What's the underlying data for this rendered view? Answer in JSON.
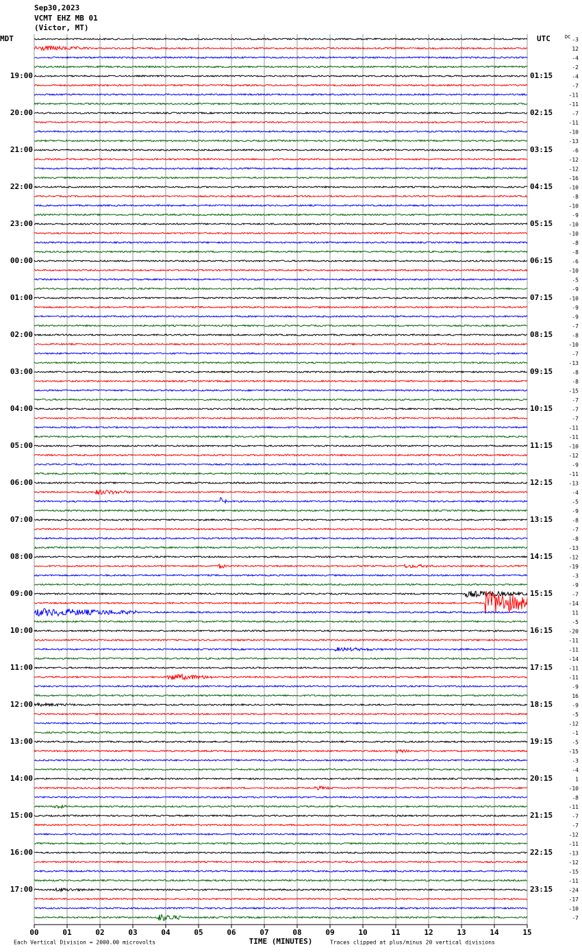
{
  "header": {
    "date": "Sep30,2023",
    "station": "VCMT EHZ MB 01",
    "location": "(Victor, MT)"
  },
  "zones": {
    "left": "MDT",
    "right": "UTC",
    "dc": "DC"
  },
  "hours": [
    {
      "mdt": "19:00",
      "utc": "01:15"
    },
    {
      "mdt": "20:00",
      "utc": "02:15"
    },
    {
      "mdt": "21:00",
      "utc": "03:15"
    },
    {
      "mdt": "22:00",
      "utc": "04:15"
    },
    {
      "mdt": "23:00",
      "utc": "05:15"
    },
    {
      "mdt": "00:00",
      "utc": "06:15"
    },
    {
      "mdt": "01:00",
      "utc": "07:15"
    },
    {
      "mdt": "02:00",
      "utc": "08:15"
    },
    {
      "mdt": "03:00",
      "utc": "09:15"
    },
    {
      "mdt": "04:00",
      "utc": "10:15"
    },
    {
      "mdt": "05:00",
      "utc": "11:15"
    },
    {
      "mdt": "06:00",
      "utc": "12:15"
    },
    {
      "mdt": "07:00",
      "utc": "13:15"
    },
    {
      "mdt": "08:00",
      "utc": "14:15"
    },
    {
      "mdt": "09:00",
      "utc": "15:15"
    },
    {
      "mdt": "10:00",
      "utc": "16:15"
    },
    {
      "mdt": "11:00",
      "utc": "17:15"
    },
    {
      "mdt": "12:00",
      "utc": "18:15"
    },
    {
      "mdt": "13:00",
      "utc": "19:15"
    },
    {
      "mdt": "14:00",
      "utc": "20:15"
    },
    {
      "mdt": "15:00",
      "utc": "21:15"
    },
    {
      "mdt": "16:00",
      "utc": "22:15"
    },
    {
      "mdt": "17:00",
      "utc": "23:15"
    }
  ],
  "dc_offsets": [
    -3,
    12,
    -4,
    -2,
    -4,
    -7,
    -11,
    -11,
    -7,
    -11,
    -10,
    -13,
    -6,
    -12,
    -12,
    -16,
    -10,
    -8,
    -10,
    -9,
    -10,
    -10,
    -8,
    -8,
    -6,
    -10,
    -5,
    -9,
    -10,
    -9,
    -9,
    -7,
    -8,
    -10,
    -7,
    -13,
    -8,
    -8,
    -15,
    -7,
    -7,
    -7,
    -11,
    -11,
    -10,
    -12,
    -9,
    -11,
    -13,
    -4,
    -5,
    -9,
    -8,
    -7,
    -8,
    -13,
    -12,
    -19,
    -3,
    -9,
    -7,
    -14,
    11,
    -5,
    -20,
    -11,
    -11,
    -14,
    -11,
    -11,
    -9,
    16,
    -9,
    -5,
    -12,
    -1,
    -5,
    -15,
    -3,
    -4,
    1,
    -10,
    -8,
    -11,
    -7,
    -7,
    -12,
    -11,
    -13,
    -12,
    -15,
    -11,
    -24,
    -17,
    -10,
    -7
  ],
  "trace_colors": [
    "#000000",
    "#ff0000",
    "#0000ff",
    "#006400"
  ],
  "x_ticks": [
    "00",
    "01",
    "02",
    "03",
    "04",
    "05",
    "06",
    "07",
    "08",
    "09",
    "10",
    "11",
    "12",
    "13",
    "14",
    "15"
  ],
  "x_axis_title": "TIME (MINUTES)",
  "footer": {
    "left": "Each Vertical Division = 2000.00 microvolts",
    "right": "Traces clipped at plus/minus 20 vertical divisions"
  }
}
